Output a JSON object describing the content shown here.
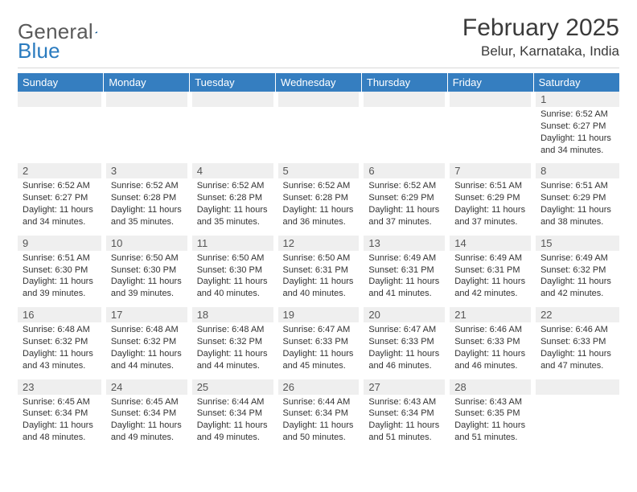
{
  "logo": {
    "text1": "General",
    "text2": "Blue"
  },
  "title": "February 2025",
  "subtitle": "Belur, Karnataka, India",
  "colors": {
    "header_bg": "#357ec0",
    "header_text": "#ffffff",
    "daynum_bg": "#efefef",
    "logo_gray": "#5a5a5a",
    "logo_blue": "#2a7bbf"
  },
  "day_headers": [
    "Sunday",
    "Monday",
    "Tuesday",
    "Wednesday",
    "Thursday",
    "Friday",
    "Saturday"
  ],
  "weeks": [
    [
      {
        "n": "",
        "sunrise": "",
        "sunset": "",
        "daylight": ""
      },
      {
        "n": "",
        "sunrise": "",
        "sunset": "",
        "daylight": ""
      },
      {
        "n": "",
        "sunrise": "",
        "sunset": "",
        "daylight": ""
      },
      {
        "n": "",
        "sunrise": "",
        "sunset": "",
        "daylight": ""
      },
      {
        "n": "",
        "sunrise": "",
        "sunset": "",
        "daylight": ""
      },
      {
        "n": "",
        "sunrise": "",
        "sunset": "",
        "daylight": ""
      },
      {
        "n": "1",
        "sunrise": "Sunrise: 6:52 AM",
        "sunset": "Sunset: 6:27 PM",
        "daylight": "Daylight: 11 hours and 34 minutes."
      }
    ],
    [
      {
        "n": "2",
        "sunrise": "Sunrise: 6:52 AM",
        "sunset": "Sunset: 6:27 PM",
        "daylight": "Daylight: 11 hours and 34 minutes."
      },
      {
        "n": "3",
        "sunrise": "Sunrise: 6:52 AM",
        "sunset": "Sunset: 6:28 PM",
        "daylight": "Daylight: 11 hours and 35 minutes."
      },
      {
        "n": "4",
        "sunrise": "Sunrise: 6:52 AM",
        "sunset": "Sunset: 6:28 PM",
        "daylight": "Daylight: 11 hours and 35 minutes."
      },
      {
        "n": "5",
        "sunrise": "Sunrise: 6:52 AM",
        "sunset": "Sunset: 6:28 PM",
        "daylight": "Daylight: 11 hours and 36 minutes."
      },
      {
        "n": "6",
        "sunrise": "Sunrise: 6:52 AM",
        "sunset": "Sunset: 6:29 PM",
        "daylight": "Daylight: 11 hours and 37 minutes."
      },
      {
        "n": "7",
        "sunrise": "Sunrise: 6:51 AM",
        "sunset": "Sunset: 6:29 PM",
        "daylight": "Daylight: 11 hours and 37 minutes."
      },
      {
        "n": "8",
        "sunrise": "Sunrise: 6:51 AM",
        "sunset": "Sunset: 6:29 PM",
        "daylight": "Daylight: 11 hours and 38 minutes."
      }
    ],
    [
      {
        "n": "9",
        "sunrise": "Sunrise: 6:51 AM",
        "sunset": "Sunset: 6:30 PM",
        "daylight": "Daylight: 11 hours and 39 minutes."
      },
      {
        "n": "10",
        "sunrise": "Sunrise: 6:50 AM",
        "sunset": "Sunset: 6:30 PM",
        "daylight": "Daylight: 11 hours and 39 minutes."
      },
      {
        "n": "11",
        "sunrise": "Sunrise: 6:50 AM",
        "sunset": "Sunset: 6:30 PM",
        "daylight": "Daylight: 11 hours and 40 minutes."
      },
      {
        "n": "12",
        "sunrise": "Sunrise: 6:50 AM",
        "sunset": "Sunset: 6:31 PM",
        "daylight": "Daylight: 11 hours and 40 minutes."
      },
      {
        "n": "13",
        "sunrise": "Sunrise: 6:49 AM",
        "sunset": "Sunset: 6:31 PM",
        "daylight": "Daylight: 11 hours and 41 minutes."
      },
      {
        "n": "14",
        "sunrise": "Sunrise: 6:49 AM",
        "sunset": "Sunset: 6:31 PM",
        "daylight": "Daylight: 11 hours and 42 minutes."
      },
      {
        "n": "15",
        "sunrise": "Sunrise: 6:49 AM",
        "sunset": "Sunset: 6:32 PM",
        "daylight": "Daylight: 11 hours and 42 minutes."
      }
    ],
    [
      {
        "n": "16",
        "sunrise": "Sunrise: 6:48 AM",
        "sunset": "Sunset: 6:32 PM",
        "daylight": "Daylight: 11 hours and 43 minutes."
      },
      {
        "n": "17",
        "sunrise": "Sunrise: 6:48 AM",
        "sunset": "Sunset: 6:32 PM",
        "daylight": "Daylight: 11 hours and 44 minutes."
      },
      {
        "n": "18",
        "sunrise": "Sunrise: 6:48 AM",
        "sunset": "Sunset: 6:32 PM",
        "daylight": "Daylight: 11 hours and 44 minutes."
      },
      {
        "n": "19",
        "sunrise": "Sunrise: 6:47 AM",
        "sunset": "Sunset: 6:33 PM",
        "daylight": "Daylight: 11 hours and 45 minutes."
      },
      {
        "n": "20",
        "sunrise": "Sunrise: 6:47 AM",
        "sunset": "Sunset: 6:33 PM",
        "daylight": "Daylight: 11 hours and 46 minutes."
      },
      {
        "n": "21",
        "sunrise": "Sunrise: 6:46 AM",
        "sunset": "Sunset: 6:33 PM",
        "daylight": "Daylight: 11 hours and 46 minutes."
      },
      {
        "n": "22",
        "sunrise": "Sunrise: 6:46 AM",
        "sunset": "Sunset: 6:33 PM",
        "daylight": "Daylight: 11 hours and 47 minutes."
      }
    ],
    [
      {
        "n": "23",
        "sunrise": "Sunrise: 6:45 AM",
        "sunset": "Sunset: 6:34 PM",
        "daylight": "Daylight: 11 hours and 48 minutes."
      },
      {
        "n": "24",
        "sunrise": "Sunrise: 6:45 AM",
        "sunset": "Sunset: 6:34 PM",
        "daylight": "Daylight: 11 hours and 49 minutes."
      },
      {
        "n": "25",
        "sunrise": "Sunrise: 6:44 AM",
        "sunset": "Sunset: 6:34 PM",
        "daylight": "Daylight: 11 hours and 49 minutes."
      },
      {
        "n": "26",
        "sunrise": "Sunrise: 6:44 AM",
        "sunset": "Sunset: 6:34 PM",
        "daylight": "Daylight: 11 hours and 50 minutes."
      },
      {
        "n": "27",
        "sunrise": "Sunrise: 6:43 AM",
        "sunset": "Sunset: 6:34 PM",
        "daylight": "Daylight: 11 hours and 51 minutes."
      },
      {
        "n": "28",
        "sunrise": "Sunrise: 6:43 AM",
        "sunset": "Sunset: 6:35 PM",
        "daylight": "Daylight: 11 hours and 51 minutes."
      },
      {
        "n": "",
        "sunrise": "",
        "sunset": "",
        "daylight": ""
      }
    ]
  ]
}
